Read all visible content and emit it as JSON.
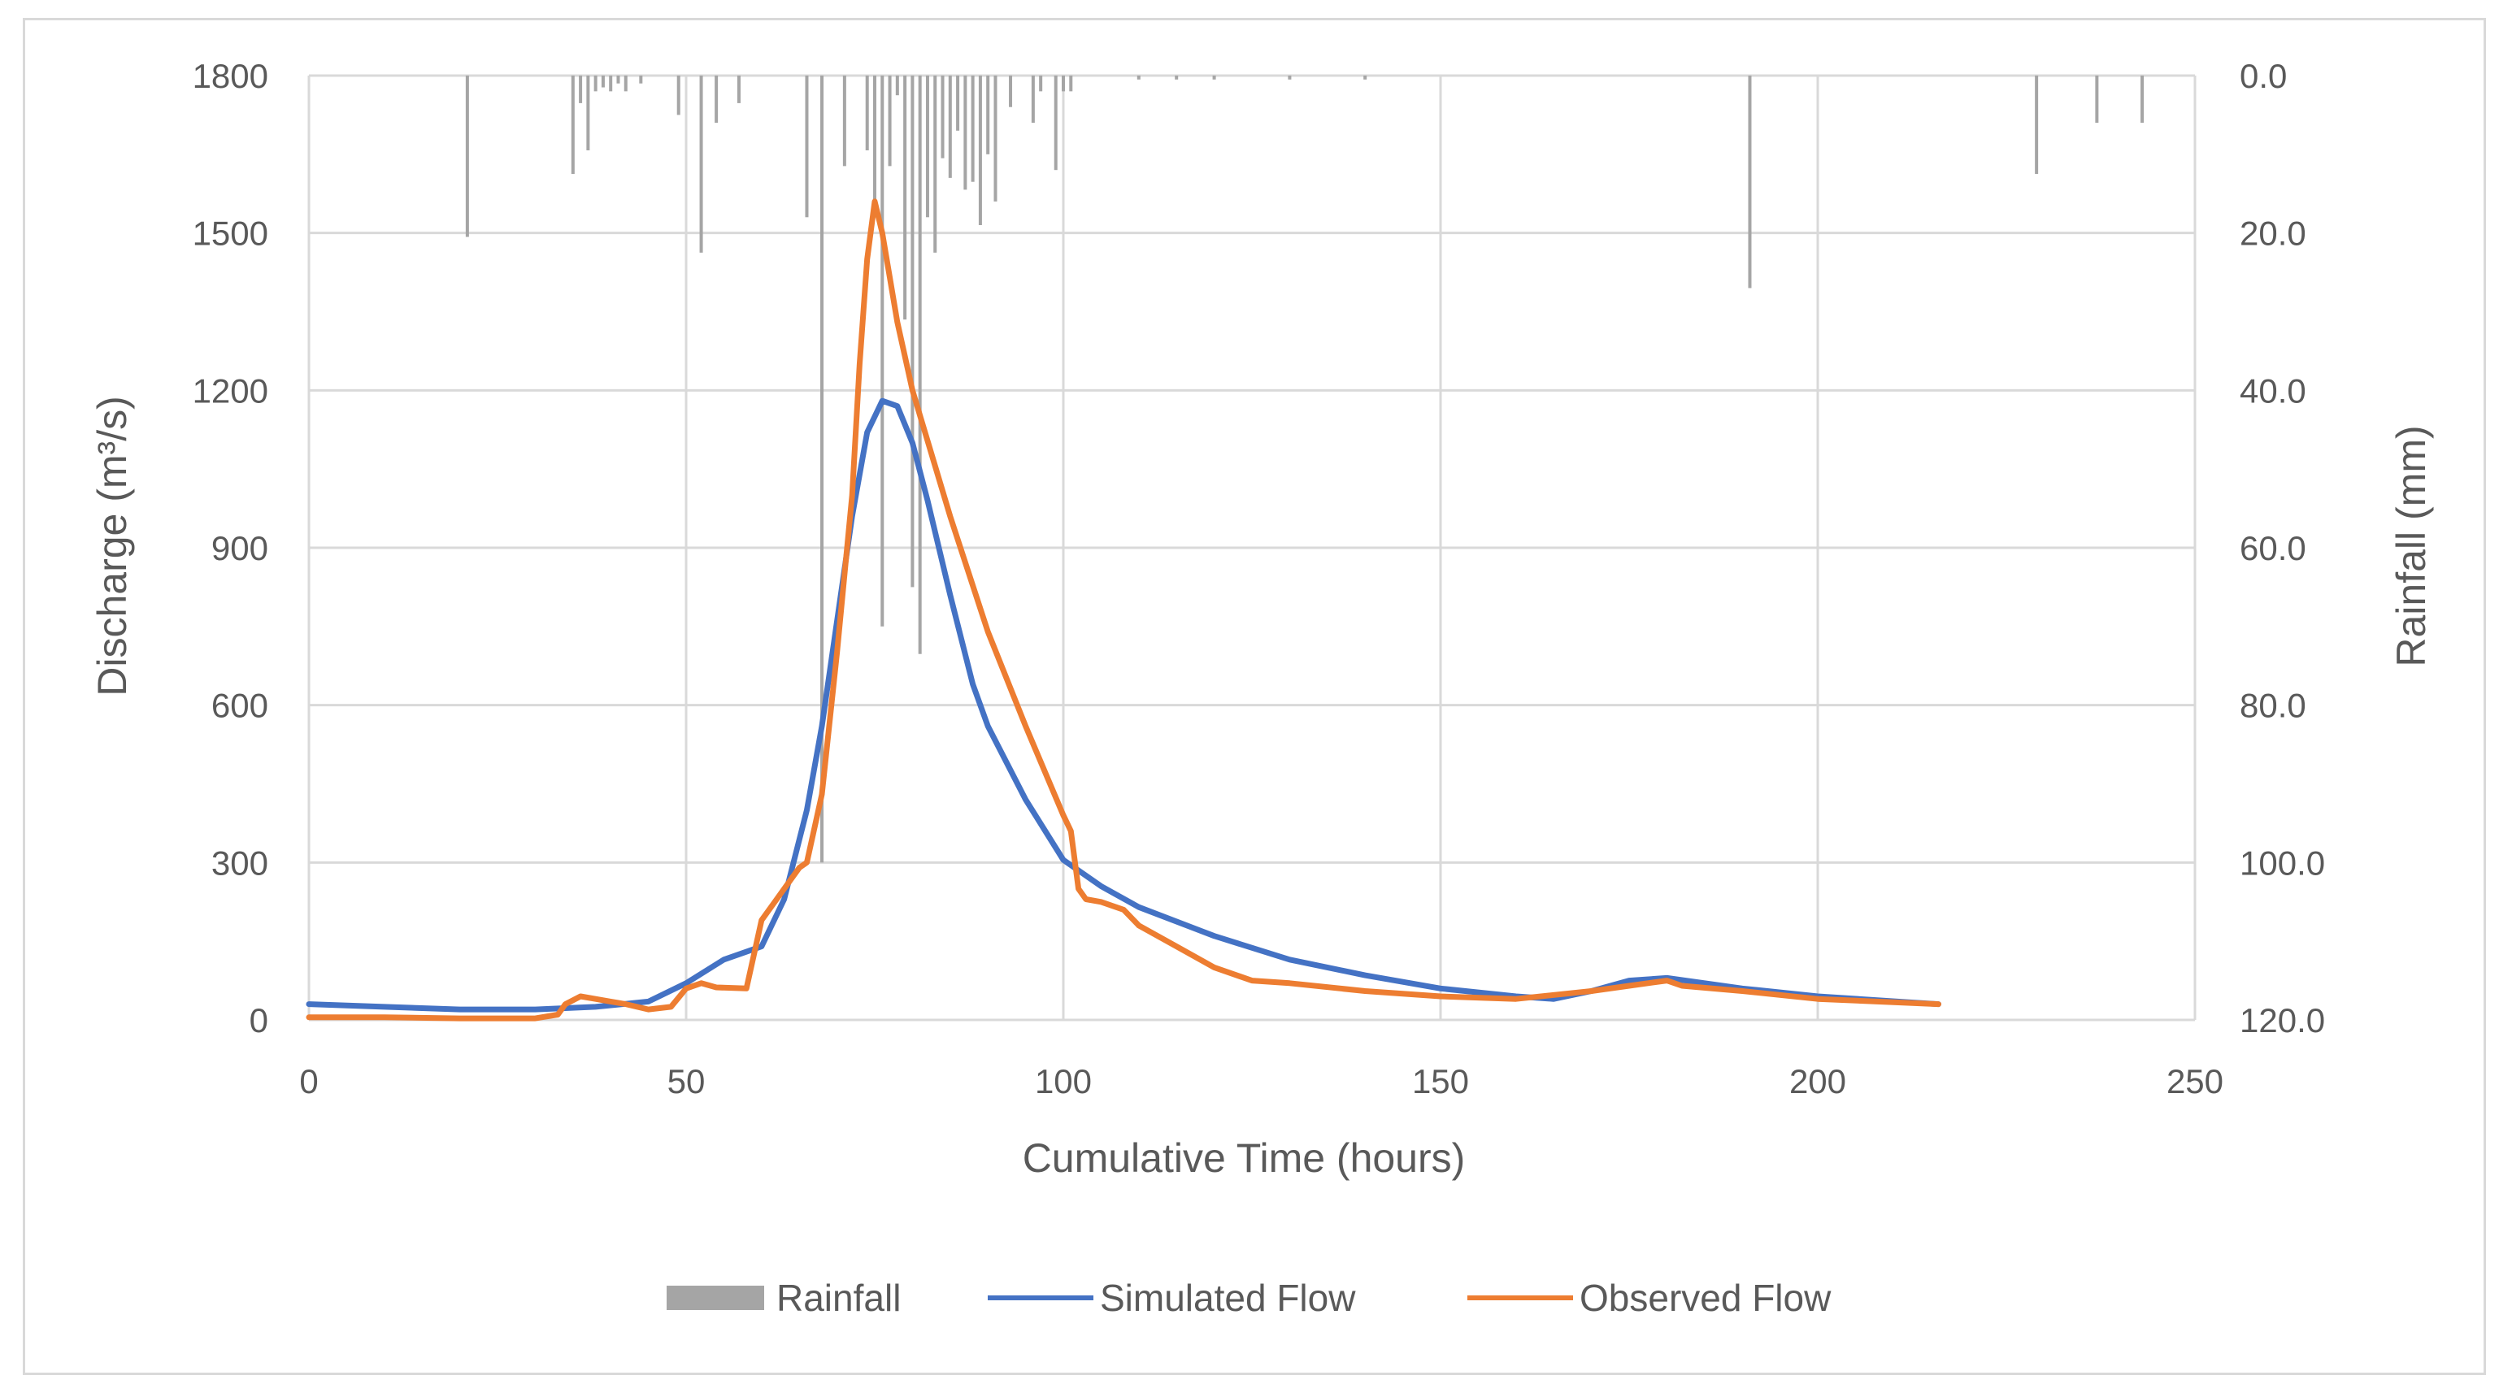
{
  "chart_data": {
    "type": "line",
    "title": "",
    "xlabel": "Cumulative Time (hours)",
    "ylabel": "Discharge (m³/s)",
    "y2label": "Rainfall (mm)",
    "xlim": [
      0,
      250
    ],
    "ylim": [
      0,
      1800
    ],
    "y2lim": [
      0,
      120
    ],
    "y2_reversed": true,
    "grid": true,
    "legend_position": "bottom-center",
    "x_ticks": [
      "0",
      "50",
      "100",
      "150",
      "200",
      "250"
    ],
    "y_ticks": [
      "0",
      "300",
      "600",
      "900",
      "1200",
      "1500",
      "1800"
    ],
    "y2_ticks": [
      "0.0",
      "20.0",
      "40.0",
      "60.0",
      "80.0",
      "100.0",
      "120.0"
    ],
    "colors": {
      "rainfall": "#a5a5a5",
      "simulated": "#4472c4",
      "observed": "#ed7d31",
      "grid": "#d9d9d9",
      "text": "#595959"
    },
    "legend": [
      "Rainfall",
      "Simulated Flow",
      "Observed Flow"
    ],
    "rainfall": {
      "name": "Rainfall",
      "x": [
        21,
        35,
        36,
        37,
        38,
        39,
        40,
        41,
        42,
        44,
        49,
        52,
        54,
        57,
        66,
        68,
        71,
        74,
        75,
        76,
        77,
        78,
        79,
        80,
        81,
        82,
        83,
        84,
        85,
        86,
        87,
        88,
        89,
        90,
        91,
        93,
        96,
        97,
        99,
        100,
        101,
        110,
        115,
        120,
        130,
        140,
        191,
        229,
        237,
        243
      ],
      "values": [
        20.5,
        12.5,
        3.5,
        9.5,
        2,
        1.5,
        2,
        1,
        2,
        1,
        5,
        22.5,
        6,
        3.5,
        18,
        100,
        11.5,
        9.5,
        16.5,
        70,
        11.5,
        2.5,
        31,
        65,
        73.5,
        18,
        22.5,
        10.5,
        13,
        7,
        14.5,
        13.5,
        19,
        10,
        16,
        4,
        6,
        2,
        12,
        2,
        2,
        0.5,
        0.5,
        0.5,
        0.5,
        0.5,
        27,
        12.5,
        6,
        6
      ]
    },
    "series": [
      {
        "name": "Simulated Flow",
        "x": [
          0,
          10,
          20,
          30,
          38,
          45,
          50,
          55,
          60,
          63,
          66,
          68,
          70,
          72,
          74,
          76,
          78,
          80,
          82,
          85,
          88,
          90,
          95,
          100,
          105,
          110,
          120,
          130,
          140,
          150,
          160,
          165,
          170,
          175,
          180,
          190,
          200,
          216
        ],
        "values": [
          30,
          25,
          20,
          20,
          25,
          35,
          70,
          115,
          140,
          230,
          400,
          560,
          760,
          960,
          1120,
          1180,
          1170,
          1100,
          990,
          810,
          640,
          560,
          420,
          305,
          255,
          215,
          160,
          115,
          85,
          60,
          45,
          40,
          55,
          75,
          80,
          60,
          45,
          30
        ]
      },
      {
        "name": "Observed Flow",
        "x": [
          0,
          10,
          20,
          30,
          33,
          34,
          36,
          38,
          40,
          42,
          45,
          48,
          50,
          52,
          54,
          58,
          60,
          62,
          64,
          65,
          66,
          68,
          70,
          72,
          73,
          74,
          75,
          76,
          78,
          80,
          85,
          90,
          95,
          100,
          101,
          102,
          103,
          105,
          108,
          110,
          115,
          120,
          125,
          130,
          140,
          150,
          160,
          170,
          175,
          180,
          182,
          190,
          200,
          216
        ],
        "values": [
          5,
          5,
          3,
          3,
          10,
          30,
          45,
          40,
          35,
          30,
          20,
          25,
          60,
          70,
          62,
          60,
          190,
          230,
          270,
          290,
          300,
          430,
          700,
          1000,
          1250,
          1450,
          1560,
          1500,
          1330,
          1200,
          960,
          740,
          560,
          390,
          360,
          250,
          230,
          225,
          210,
          180,
          140,
          100,
          75,
          70,
          55,
          45,
          40,
          55,
          65,
          75,
          65,
          55,
          40,
          30
        ]
      }
    ]
  }
}
